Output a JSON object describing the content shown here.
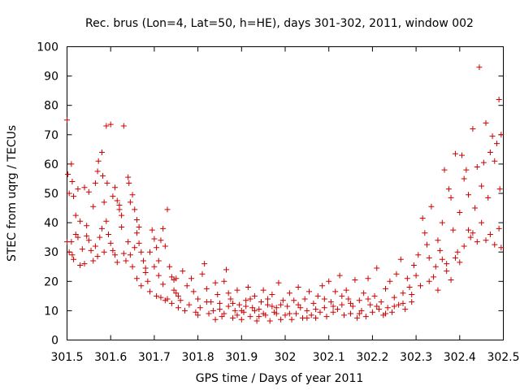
{
  "chart_data": {
    "type": "scatter",
    "title": "Rec. brus (Lon=4, Lat=50, h=HE), days 301-302, 2011, window 002",
    "xlabel": "GPS time / Days of year 2011",
    "ylabel": "STEC from uqrg / TECUs",
    "xlim": [
      301.5,
      302.5
    ],
    "ylim": [
      0,
      100
    ],
    "xticks": [
      301.5,
      301.6,
      301.7,
      301.8,
      301.9,
      302.0,
      302.1,
      302.2,
      302.3,
      302.4,
      302.5
    ],
    "xtick_labels": [
      "301.5",
      "301.6",
      "301.7",
      "301.8",
      "301.9",
      "302",
      "302.1",
      "302.2",
      "302.3",
      "302.4",
      "302.5"
    ],
    "yticks": [
      0,
      10,
      20,
      30,
      40,
      50,
      60,
      70,
      80,
      90,
      100
    ],
    "ytick_labels": [
      "0",
      "10",
      "20",
      "30",
      "40",
      "50",
      "60",
      "70",
      "80",
      "90",
      "100"
    ],
    "grid": "none",
    "marker": "+",
    "color": "#cc0000",
    "points": [
      [
        301.5,
        75.0
      ],
      [
        301.502,
        56.5
      ],
      [
        301.505,
        50.0
      ],
      [
        301.51,
        60.0
      ],
      [
        301.512,
        54.0
      ],
      [
        301.515,
        49.0
      ],
      [
        301.52,
        42.5
      ],
      [
        301.525,
        51.5
      ],
      [
        301.53,
        40.5
      ],
      [
        301.54,
        52.0
      ],
      [
        301.545,
        39.0
      ],
      [
        301.55,
        50.5
      ],
      [
        301.56,
        45.5
      ],
      [
        301.565,
        53.5
      ],
      [
        301.57,
        57.5
      ],
      [
        301.572,
        61.0
      ],
      [
        301.58,
        64.0
      ],
      [
        301.582,
        56.0
      ],
      [
        301.585,
        47.0
      ],
      [
        301.59,
        73.0
      ],
      [
        301.592,
        53.5
      ],
      [
        301.6,
        73.5
      ],
      [
        301.605,
        49.0
      ],
      [
        301.61,
        52.0
      ],
      [
        301.615,
        47.5
      ],
      [
        301.62,
        46.0
      ],
      [
        301.625,
        42.5
      ],
      [
        301.63,
        73.0
      ],
      [
        301.64,
        55.5
      ],
      [
        301.642,
        53.5
      ],
      [
        301.645,
        47.0
      ],
      [
        301.65,
        49.5
      ],
      [
        301.655,
        44.5
      ],
      [
        301.66,
        41.0
      ],
      [
        301.665,
        38.5
      ],
      [
        301.5,
        33.5
      ],
      [
        301.505,
        30.0
      ],
      [
        301.51,
        33.5
      ],
      [
        301.512,
        29.0
      ],
      [
        301.515,
        27.5
      ],
      [
        301.52,
        36.0
      ],
      [
        301.525,
        35.0
      ],
      [
        301.53,
        25.5
      ],
      [
        301.535,
        31.0
      ],
      [
        301.54,
        26.0
      ],
      [
        301.545,
        35.5
      ],
      [
        301.55,
        34.0
      ],
      [
        301.555,
        30.5
      ],
      [
        301.56,
        27.0
      ],
      [
        301.565,
        32.0
      ],
      [
        301.57,
        28.5
      ],
      [
        301.575,
        35.0
      ],
      [
        301.58,
        38.0
      ],
      [
        301.585,
        30.0
      ],
      [
        301.59,
        40.5
      ],
      [
        301.595,
        36.0
      ],
      [
        301.6,
        33.0
      ],
      [
        301.605,
        30.5
      ],
      [
        301.61,
        29.0
      ],
      [
        301.615,
        26.5
      ],
      [
        301.62,
        44.5
      ],
      [
        301.625,
        38.5
      ],
      [
        301.63,
        29.5
      ],
      [
        301.635,
        27.0
      ],
      [
        301.64,
        33.5
      ],
      [
        301.645,
        29.0
      ],
      [
        301.65,
        25.0
      ],
      [
        301.655,
        31.5
      ],
      [
        301.66,
        36.5
      ],
      [
        301.665,
        33.0
      ],
      [
        301.67,
        30.0
      ],
      [
        301.675,
        27.0
      ],
      [
        301.68,
        24.5
      ],
      [
        301.685,
        20.0
      ],
      [
        301.69,
        30.0
      ],
      [
        301.695,
        37.5
      ],
      [
        301.7,
        34.5
      ],
      [
        301.705,
        31.5
      ],
      [
        301.71,
        27.0
      ],
      [
        301.715,
        34.0
      ],
      [
        301.72,
        38.0
      ],
      [
        301.725,
        32.0
      ],
      [
        301.73,
        44.5
      ],
      [
        301.735,
        25.0
      ],
      [
        301.74,
        21.5
      ],
      [
        301.745,
        17.0
      ],
      [
        301.75,
        21.0
      ],
      [
        301.755,
        15.0
      ],
      [
        301.66,
        21.0
      ],
      [
        301.67,
        18.5
      ],
      [
        301.68,
        23.0
      ],
      [
        301.69,
        16.5
      ],
      [
        301.7,
        25.0
      ],
      [
        301.705,
        15.0
      ],
      [
        301.71,
        22.0
      ],
      [
        301.715,
        14.5
      ],
      [
        301.72,
        19.0
      ],
      [
        301.725,
        13.5
      ],
      [
        301.73,
        14.0
      ],
      [
        301.74,
        12.5
      ],
      [
        301.745,
        20.5
      ],
      [
        301.75,
        16.0
      ],
      [
        301.755,
        11.0
      ],
      [
        301.76,
        13.5
      ],
      [
        301.765,
        23.5
      ],
      [
        301.77,
        10.0
      ],
      [
        301.775,
        18.5
      ],
      [
        301.78,
        12.0
      ],
      [
        301.785,
        21.0
      ],
      [
        301.79,
        16.5
      ],
      [
        301.795,
        9.5
      ],
      [
        301.8,
        14.0
      ],
      [
        301.805,
        11.0
      ],
      [
        301.81,
        22.5
      ],
      [
        301.815,
        26.0
      ],
      [
        301.82,
        17.5
      ],
      [
        301.825,
        9.0
      ],
      [
        301.83,
        13.0
      ],
      [
        301.835,
        10.0
      ],
      [
        301.84,
        19.5
      ],
      [
        301.845,
        15.5
      ],
      [
        301.85,
        12.5
      ],
      [
        301.855,
        8.0
      ],
      [
        301.86,
        20.0
      ],
      [
        301.865,
        24.0
      ],
      [
        301.87,
        11.5
      ],
      [
        301.875,
        14.0
      ],
      [
        301.88,
        7.5
      ],
      [
        301.885,
        10.0
      ],
      [
        301.89,
        17.0
      ],
      [
        301.895,
        12.0
      ],
      [
        301.9,
        7.0
      ],
      [
        301.905,
        9.5
      ],
      [
        301.91,
        13.5
      ],
      [
        301.915,
        18.0
      ],
      [
        301.92,
        8.0
      ],
      [
        301.925,
        11.0
      ],
      [
        301.93,
        15.0
      ],
      [
        301.935,
        6.5
      ],
      [
        301.94,
        10.5
      ],
      [
        301.945,
        13.0
      ],
      [
        301.95,
        17.0
      ],
      [
        301.955,
        8.5
      ],
      [
        301.96,
        12.0
      ],
      [
        301.965,
        6.5
      ],
      [
        301.97,
        15.5
      ],
      [
        301.975,
        9.5
      ],
      [
        301.98,
        11.0
      ],
      [
        301.985,
        19.5
      ],
      [
        301.99,
        7.0
      ],
      [
        301.995,
        13.5
      ],
      [
        301.8,
        8.5
      ],
      [
        301.82,
        13.0
      ],
      [
        301.84,
        7.0
      ],
      [
        301.86,
        9.0
      ],
      [
        301.88,
        12.5
      ],
      [
        301.9,
        10.0
      ],
      [
        301.92,
        14.0
      ],
      [
        301.94,
        8.0
      ],
      [
        301.96,
        14.0
      ],
      [
        301.98,
        9.0
      ],
      [
        301.85,
        10.5
      ],
      [
        301.87,
        16.0
      ],
      [
        301.89,
        8.5
      ],
      [
        301.91,
        11.5
      ],
      [
        301.93,
        10.0
      ],
      [
        301.95,
        9.0
      ],
      [
        301.97,
        11.5
      ],
      [
        301.99,
        12.0
      ],
      [
        302.0,
        8.5
      ],
      [
        302.005,
        11.5
      ],
      [
        302.01,
        16.0
      ],
      [
        302.015,
        7.0
      ],
      [
        302.02,
        13.5
      ],
      [
        302.025,
        9.0
      ],
      [
        302.03,
        18.0
      ],
      [
        302.035,
        11.0
      ],
      [
        302.04,
        7.5
      ],
      [
        302.045,
        14.0
      ],
      [
        302.05,
        10.0
      ],
      [
        302.055,
        16.5
      ],
      [
        302.06,
        8.5
      ],
      [
        302.065,
        12.5
      ],
      [
        302.07,
        7.5
      ],
      [
        302.075,
        15.0
      ],
      [
        302.08,
        9.5
      ],
      [
        302.085,
        18.5
      ],
      [
        302.09,
        11.0
      ],
      [
        302.095,
        8.0
      ],
      [
        302.1,
        20.0
      ],
      [
        302.105,
        13.0
      ],
      [
        302.11,
        9.5
      ],
      [
        302.115,
        16.5
      ],
      [
        302.12,
        10.5
      ],
      [
        302.125,
        22.0
      ],
      [
        302.13,
        12.0
      ],
      [
        302.135,
        8.5
      ],
      [
        302.14,
        17.0
      ],
      [
        302.145,
        14.0
      ],
      [
        302.15,
        9.0
      ],
      [
        302.155,
        11.5
      ],
      [
        302.16,
        20.5
      ],
      [
        302.165,
        7.5
      ],
      [
        302.17,
        13.5
      ],
      [
        302.175,
        10.0
      ],
      [
        302.18,
        16.0
      ],
      [
        302.185,
        8.0
      ],
      [
        302.19,
        21.0
      ],
      [
        302.195,
        12.0
      ],
      [
        302.2,
        9.5
      ],
      [
        302.205,
        15.0
      ],
      [
        302.21,
        24.5
      ],
      [
        302.215,
        10.5
      ],
      [
        302.22,
        13.0
      ],
      [
        302.225,
        8.5
      ],
      [
        302.23,
        17.5
      ],
      [
        302.235,
        11.0
      ],
      [
        302.24,
        20.0
      ],
      [
        302.245,
        9.5
      ],
      [
        302.25,
        14.5
      ],
      [
        302.255,
        22.5
      ],
      [
        302.26,
        12.0
      ],
      [
        302.265,
        27.5
      ],
      [
        302.27,
        16.0
      ],
      [
        302.275,
        10.5
      ],
      [
        302.28,
        21.0
      ],
      [
        302.285,
        18.0
      ],
      [
        302.29,
        13.0
      ],
      [
        302.295,
        25.5
      ],
      [
        302.01,
        9.0
      ],
      [
        302.03,
        12.0
      ],
      [
        302.05,
        7.5
      ],
      [
        302.07,
        10.5
      ],
      [
        302.09,
        14.0
      ],
      [
        302.11,
        11.5
      ],
      [
        302.13,
        15.0
      ],
      [
        302.15,
        12.5
      ],
      [
        302.17,
        9.0
      ],
      [
        302.19,
        14.0
      ],
      [
        302.21,
        11.5
      ],
      [
        302.23,
        9.0
      ],
      [
        302.25,
        11.5
      ],
      [
        302.27,
        12.5
      ],
      [
        302.29,
        15.5
      ],
      [
        302.3,
        22.0
      ],
      [
        302.305,
        29.0
      ],
      [
        302.31,
        18.5
      ],
      [
        302.315,
        41.5
      ],
      [
        302.32,
        36.5
      ],
      [
        302.325,
        32.5
      ],
      [
        302.33,
        28.0
      ],
      [
        302.335,
        45.5
      ],
      [
        302.34,
        21.5
      ],
      [
        302.345,
        25.0
      ],
      [
        302.35,
        34.0
      ],
      [
        302.355,
        30.5
      ],
      [
        302.36,
        40.0
      ],
      [
        302.365,
        58.0
      ],
      [
        302.37,
        23.5
      ],
      [
        302.375,
        51.5
      ],
      [
        302.38,
        48.5
      ],
      [
        302.385,
        37.5
      ],
      [
        302.39,
        63.5
      ],
      [
        302.395,
        30.0
      ],
      [
        302.4,
        43.5
      ],
      [
        302.405,
        63.0
      ],
      [
        302.41,
        55.0
      ],
      [
        302.415,
        58.0
      ],
      [
        302.42,
        49.5
      ],
      [
        302.425,
        35.0
      ],
      [
        302.43,
        72.0
      ],
      [
        302.435,
        45.0
      ],
      [
        302.44,
        59.0
      ],
      [
        302.445,
        93.0
      ],
      [
        302.45,
        52.5
      ],
      [
        302.455,
        60.5
      ],
      [
        302.46,
        74.0
      ],
      [
        302.465,
        48.5
      ],
      [
        302.47,
        64.0
      ],
      [
        302.475,
        69.5
      ],
      [
        302.48,
        61.0
      ],
      [
        302.485,
        67.0
      ],
      [
        302.49,
        82.0
      ],
      [
        302.492,
        51.5
      ],
      [
        302.495,
        70.0
      ],
      [
        302.33,
        20.0
      ],
      [
        302.35,
        17.0
      ],
      [
        302.37,
        26.0
      ],
      [
        302.39,
        28.0
      ],
      [
        302.41,
        32.0
      ],
      [
        302.42,
        37.5
      ],
      [
        302.43,
        36.5
      ],
      [
        302.44,
        33.5
      ],
      [
        302.45,
        40.0
      ],
      [
        302.46,
        34.0
      ],
      [
        302.47,
        36.0
      ],
      [
        302.48,
        32.5
      ],
      [
        302.49,
        38.0
      ],
      [
        302.495,
        31.5
      ],
      [
        302.4,
        26.5
      ],
      [
        302.38,
        20.5
      ],
      [
        302.36,
        27.5
      ]
    ]
  }
}
